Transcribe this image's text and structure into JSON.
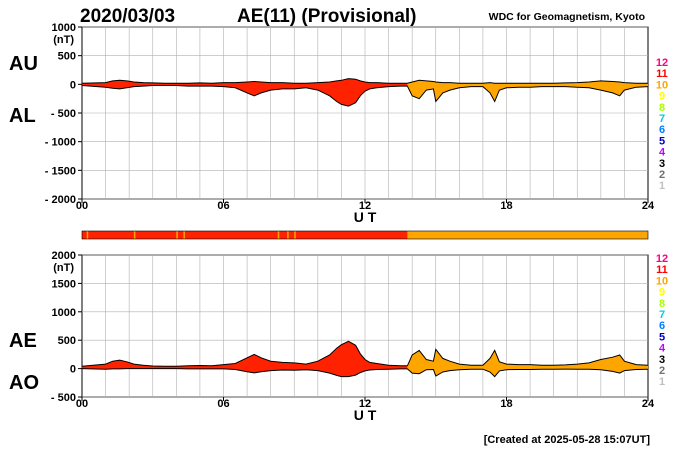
{
  "chart_data": {
    "type": "area",
    "date": "2020/03/03",
    "title": "AE(11) (Provisional)",
    "source": "WDC for Geomagnetism, Kyoto",
    "created": "[Created at 2025-05-28 15:07UT]",
    "xlabel": "U T",
    "x_ticks": [
      "00",
      "06",
      "12",
      "18",
      "24"
    ],
    "color_scale": {
      "labels": [
        "12",
        "11",
        "10",
        "9",
        "8",
        "7",
        "6",
        "5",
        "4",
        "3",
        "2",
        "1"
      ],
      "colors": [
        "#ff0080",
        "#ff0000",
        "#ffa500",
        "#ffff00",
        "#aaff00",
        "#00d0d0",
        "#0080ff",
        "#0000c0",
        "#c000ff",
        "#000000",
        "#707070",
        "#c0c0c0"
      ]
    },
    "station_bar": {
      "segments": [
        {
          "from": 0,
          "to": 13.8,
          "stations": 11,
          "color": "#ff2200"
        },
        {
          "from": 13.8,
          "to": 24,
          "stations": 10,
          "color": "#ffa500"
        }
      ],
      "gaps": [
        0.2,
        2.2,
        4.0,
        4.3,
        8.3,
        8.7,
        9.0
      ]
    },
    "panels": [
      {
        "name": "AU/AL",
        "label_upper": "AU",
        "label_lower": "AL",
        "unit": "(nT)",
        "ylim": [
          -2000,
          1000
        ],
        "y_ticks": [
          "1000",
          "500",
          "0",
          "- 500",
          "- 1000",
          "- 1500",
          "- 2000"
        ],
        "y_tick_values": [
          1000,
          500,
          0,
          -500,
          -1000,
          -1500,
          -2000
        ],
        "hours": [
          0,
          1,
          1.3,
          1.6,
          1.9,
          2.2,
          2.6,
          3,
          3.5,
          4,
          4.5,
          5,
          5.5,
          6,
          6.5,
          7,
          7.3,
          7.6,
          8,
          8.5,
          9,
          9.5,
          10,
          10.5,
          10.8,
          11,
          11.3,
          11.6,
          11.8,
          12,
          12.2,
          12.5,
          13,
          13.5,
          13.8,
          14,
          14.3,
          14.6,
          14.9,
          15,
          15.3,
          15.6,
          16,
          16.5,
          17,
          17.3,
          17.5,
          17.7,
          18,
          18.5,
          19,
          19.5,
          20,
          20.5,
          21,
          21.5,
          22,
          22.5,
          22.8,
          23,
          23.5,
          24
        ],
        "upper": [
          20,
          30,
          60,
          70,
          60,
          40,
          30,
          25,
          20,
          20,
          20,
          25,
          20,
          30,
          30,
          40,
          50,
          40,
          30,
          30,
          20,
          20,
          30,
          40,
          60,
          70,
          100,
          90,
          60,
          40,
          30,
          30,
          20,
          20,
          20,
          40,
          70,
          60,
          50,
          40,
          30,
          30,
          20,
          20,
          20,
          30,
          20,
          20,
          20,
          20,
          20,
          20,
          20,
          25,
          30,
          40,
          60,
          50,
          40,
          30,
          20,
          20
        ],
        "lower": [
          -20,
          -50,
          -70,
          -80,
          -60,
          -40,
          -30,
          -20,
          -20,
          -20,
          -30,
          -30,
          -30,
          -40,
          -60,
          -150,
          -200,
          -150,
          -100,
          -80,
          -80,
          -60,
          -100,
          -200,
          -300,
          -350,
          -380,
          -320,
          -200,
          -120,
          -80,
          -60,
          -40,
          -30,
          -30,
          -200,
          -250,
          -100,
          -80,
          -300,
          -150,
          -100,
          -60,
          -40,
          -40,
          -150,
          -300,
          -100,
          -60,
          -50,
          -50,
          -40,
          -40,
          -40,
          -50,
          -60,
          -100,
          -150,
          -200,
          -100,
          -50,
          -40
        ]
      },
      {
        "name": "AE/AO",
        "label_upper": "AE",
        "label_lower": "AO",
        "unit": "(nT)",
        "ylim": [
          -500,
          2000
        ],
        "y_ticks": [
          "2000",
          "1500",
          "1000",
          "500",
          "0",
          "- 500"
        ],
        "y_tick_values": [
          2000,
          1500,
          1000,
          500,
          0,
          -500
        ],
        "hours": [
          0,
          1,
          1.3,
          1.6,
          1.9,
          2.2,
          2.6,
          3,
          3.5,
          4,
          4.5,
          5,
          5.5,
          6,
          6.5,
          7,
          7.3,
          7.6,
          8,
          8.5,
          9,
          9.5,
          10,
          10.5,
          10.8,
          11,
          11.3,
          11.6,
          11.8,
          12,
          12.2,
          12.5,
          13,
          13.5,
          13.8,
          14,
          14.3,
          14.6,
          14.9,
          15,
          15.3,
          15.6,
          16,
          16.5,
          17,
          17.3,
          17.5,
          17.7,
          18,
          18.5,
          19,
          19.5,
          20,
          20.5,
          21,
          21.5,
          22,
          22.5,
          22.8,
          23,
          23.5,
          24
        ],
        "upper": [
          40,
          80,
          130,
          150,
          120,
          80,
          60,
          45,
          40,
          40,
          50,
          55,
          50,
          70,
          90,
          190,
          250,
          190,
          130,
          110,
          100,
          80,
          130,
          240,
          360,
          420,
          480,
          410,
          260,
          160,
          110,
          90,
          60,
          50,
          50,
          240,
          320,
          160,
          130,
          340,
          180,
          130,
          80,
          60,
          60,
          180,
          320,
          120,
          80,
          70,
          70,
          60,
          60,
          65,
          80,
          100,
          160,
          200,
          240,
          130,
          70,
          60
        ],
        "lower": [
          0,
          -10,
          -5,
          -5,
          0,
          0,
          0,
          0,
          0,
          0,
          -5,
          -5,
          -5,
          -5,
          -15,
          -55,
          -75,
          -55,
          -35,
          -25,
          -30,
          -20,
          -35,
          -80,
          -120,
          -140,
          -140,
          -115,
          -70,
          -40,
          -25,
          -15,
          -10,
          -5,
          -5,
          -80,
          -90,
          -20,
          -15,
          -130,
          -60,
          -35,
          -20,
          -10,
          -10,
          -60,
          -140,
          -40,
          -20,
          -15,
          -15,
          -10,
          -10,
          -8,
          -10,
          -10,
          -20,
          -50,
          -80,
          -35,
          -15,
          -10
        ]
      }
    ]
  }
}
